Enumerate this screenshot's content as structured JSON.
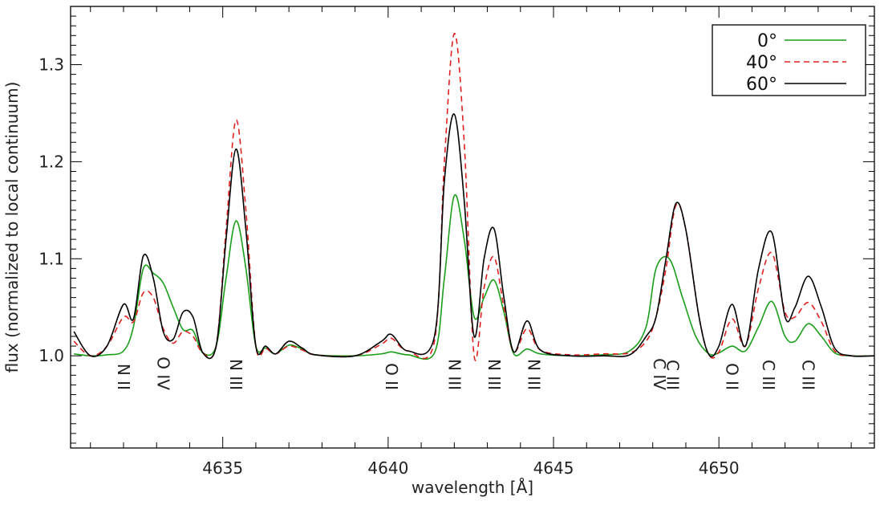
{
  "chart_data": {
    "type": "line",
    "xlabel": "wavelength [Å]",
    "ylabel": "flux (normalized to local continuum)",
    "xlim": [
      4630.4,
      4654.7
    ],
    "ylim": [
      0.905,
      1.36
    ],
    "xticks": [
      4635,
      4640,
      4645,
      4650
    ],
    "xtick_labels": [
      "4635",
      "4640",
      "4645",
      "4650"
    ],
    "yticks": [
      1.0,
      1.1,
      1.2,
      1.3
    ],
    "ytick_labels": [
      "1.0",
      "1.1",
      "1.2",
      "1.3"
    ],
    "grid": false,
    "legend_position": "top-right",
    "series": [
      {
        "name": "0°",
        "color": "#1a9e1a",
        "dash": "solid",
        "points": [
          [
            4630.5,
            1.002
          ],
          [
            4631.0,
            1.0
          ],
          [
            4631.5,
            1.001
          ],
          [
            4632.0,
            1.005
          ],
          [
            4632.3,
            1.03
          ],
          [
            4632.6,
            1.09
          ],
          [
            4632.9,
            1.085
          ],
          [
            4633.2,
            1.075
          ],
          [
            4633.5,
            1.05
          ],
          [
            4633.8,
            1.027
          ],
          [
            4634.1,
            1.026
          ],
          [
            4634.4,
            1.003
          ],
          [
            4634.8,
            1.01
          ],
          [
            4635.1,
            1.08
          ],
          [
            4635.4,
            1.139
          ],
          [
            4635.7,
            1.09
          ],
          [
            4636.0,
            1.01
          ],
          [
            4636.3,
            1.008
          ],
          [
            4636.6,
            1.002
          ],
          [
            4637.0,
            1.011
          ],
          [
            4637.4,
            1.007
          ],
          [
            4637.8,
            1.001
          ],
          [
            4639.0,
            1.0
          ],
          [
            4639.8,
            1.002
          ],
          [
            4640.1,
            1.004
          ],
          [
            4640.6,
            1.001
          ],
          [
            4641.4,
            1.003
          ],
          [
            4641.7,
            1.08
          ],
          [
            4642.0,
            1.165
          ],
          [
            4642.3,
            1.12
          ],
          [
            4642.6,
            1.04
          ],
          [
            4642.9,
            1.06
          ],
          [
            4643.2,
            1.078
          ],
          [
            4643.5,
            1.045
          ],
          [
            4643.8,
            1.002
          ],
          [
            4644.2,
            1.007
          ],
          [
            4644.6,
            1.002
          ],
          [
            4645.5,
            1.0
          ],
          [
            4646.5,
            1.001
          ],
          [
            4647.3,
            1.005
          ],
          [
            4647.8,
            1.03
          ],
          [
            4648.1,
            1.09
          ],
          [
            4648.5,
            1.1
          ],
          [
            4648.9,
            1.06
          ],
          [
            4649.3,
            1.02
          ],
          [
            4649.7,
            1.002
          ],
          [
            4650.0,
            1.003
          ],
          [
            4650.4,
            1.01
          ],
          [
            4650.8,
            1.005
          ],
          [
            4651.2,
            1.03
          ],
          [
            4651.6,
            1.056
          ],
          [
            4652.0,
            1.02
          ],
          [
            4652.3,
            1.015
          ],
          [
            4652.7,
            1.033
          ],
          [
            4653.1,
            1.02
          ],
          [
            4653.5,
            1.003
          ],
          [
            4654.0,
            1.0
          ],
          [
            4654.7,
            1.0
          ]
        ]
      },
      {
        "name": "40°",
        "color": "#e02020",
        "dash": "dashed",
        "points": [
          [
            4630.5,
            1.015
          ],
          [
            4631.0,
            1.0
          ],
          [
            4631.5,
            1.01
          ],
          [
            4632.0,
            1.04
          ],
          [
            4632.3,
            1.035
          ],
          [
            4632.6,
            1.065
          ],
          [
            4632.9,
            1.06
          ],
          [
            4633.2,
            1.028
          ],
          [
            4633.5,
            1.013
          ],
          [
            4633.8,
            1.025
          ],
          [
            4634.1,
            1.02
          ],
          [
            4634.4,
            1.003
          ],
          [
            4634.8,
            1.01
          ],
          [
            4635.1,
            1.13
          ],
          [
            4635.4,
            1.243
          ],
          [
            4635.7,
            1.15
          ],
          [
            4636.0,
            1.01
          ],
          [
            4636.3,
            1.008
          ],
          [
            4636.6,
            1.002
          ],
          [
            4637.0,
            1.01
          ],
          [
            4637.4,
            1.006
          ],
          [
            4637.8,
            1.001
          ],
          [
            4639.0,
            1.0
          ],
          [
            4639.8,
            1.012
          ],
          [
            4640.1,
            1.018
          ],
          [
            4640.6,
            1.005
          ],
          [
            4641.4,
            1.015
          ],
          [
            4641.7,
            1.2
          ],
          [
            4642.0,
            1.332
          ],
          [
            4642.3,
            1.22
          ],
          [
            4642.6,
            1.0
          ],
          [
            4642.9,
            1.07
          ],
          [
            4643.2,
            1.102
          ],
          [
            4643.5,
            1.05
          ],
          [
            4643.8,
            1.004
          ],
          [
            4644.2,
            1.028
          ],
          [
            4644.6,
            1.006
          ],
          [
            4645.5,
            1.001
          ],
          [
            4646.5,
            1.002
          ],
          [
            4647.3,
            1.003
          ],
          [
            4647.8,
            1.015
          ],
          [
            4648.1,
            1.04
          ],
          [
            4648.4,
            1.09
          ],
          [
            4648.7,
            1.155
          ],
          [
            4649.0,
            1.13
          ],
          [
            4649.4,
            1.04
          ],
          [
            4649.7,
            1.001
          ],
          [
            4650.0,
            1.004
          ],
          [
            4650.4,
            1.038
          ],
          [
            4650.8,
            1.01
          ],
          [
            4651.2,
            1.07
          ],
          [
            4651.6,
            1.106
          ],
          [
            4652.0,
            1.045
          ],
          [
            4652.3,
            1.04
          ],
          [
            4652.7,
            1.055
          ],
          [
            4653.1,
            1.035
          ],
          [
            4653.5,
            1.005
          ],
          [
            4654.0,
            1.0
          ],
          [
            4654.7,
            1.0
          ]
        ]
      },
      {
        "name": "60°",
        "color": "#000000",
        "dash": "solid",
        "points": [
          [
            4630.5,
            1.025
          ],
          [
            4631.0,
            1.0
          ],
          [
            4631.5,
            1.01
          ],
          [
            4632.0,
            1.053
          ],
          [
            4632.3,
            1.038
          ],
          [
            4632.6,
            1.103
          ],
          [
            4632.9,
            1.08
          ],
          [
            4633.2,
            1.025
          ],
          [
            4633.5,
            1.017
          ],
          [
            4633.8,
            1.045
          ],
          [
            4634.1,
            1.04
          ],
          [
            4634.4,
            1.003
          ],
          [
            4634.8,
            1.01
          ],
          [
            4635.1,
            1.12
          ],
          [
            4635.4,
            1.213
          ],
          [
            4635.7,
            1.13
          ],
          [
            4636.0,
            1.01
          ],
          [
            4636.3,
            1.01
          ],
          [
            4636.6,
            1.002
          ],
          [
            4637.0,
            1.015
          ],
          [
            4637.4,
            1.008
          ],
          [
            4637.8,
            1.001
          ],
          [
            4639.0,
            1.0
          ],
          [
            4639.8,
            1.015
          ],
          [
            4640.1,
            1.022
          ],
          [
            4640.6,
            1.005
          ],
          [
            4641.4,
            1.02
          ],
          [
            4641.7,
            1.18
          ],
          [
            4642.0,
            1.249
          ],
          [
            4642.3,
            1.16
          ],
          [
            4642.6,
            1.02
          ],
          [
            4642.9,
            1.1
          ],
          [
            4643.2,
            1.131
          ],
          [
            4643.5,
            1.06
          ],
          [
            4643.8,
            1.004
          ],
          [
            4644.2,
            1.036
          ],
          [
            4644.6,
            1.006
          ],
          [
            4645.5,
            1.0
          ],
          [
            4646.5,
            1.0
          ],
          [
            4647.3,
            1.001
          ],
          [
            4647.8,
            1.02
          ],
          [
            4648.1,
            1.04
          ],
          [
            4648.4,
            1.1
          ],
          [
            4648.7,
            1.157
          ],
          [
            4649.0,
            1.13
          ],
          [
            4649.4,
            1.04
          ],
          [
            4649.7,
            1.001
          ],
          [
            4650.0,
            1.01
          ],
          [
            4650.4,
            1.053
          ],
          [
            4650.8,
            1.01
          ],
          [
            4651.2,
            1.09
          ],
          [
            4651.6,
            1.127
          ],
          [
            4652.0,
            1.04
          ],
          [
            4652.3,
            1.05
          ],
          [
            4652.7,
            1.082
          ],
          [
            4653.1,
            1.05
          ],
          [
            4653.5,
            1.008
          ],
          [
            4654.0,
            1.0
          ],
          [
            4654.7,
            1.0
          ]
        ]
      }
    ],
    "line_labels": [
      {
        "x": 4632.0,
        "element": "N",
        "ion": "II"
      },
      {
        "x": 4633.2,
        "element": "O",
        "ion": "IV"
      },
      {
        "x": 4635.4,
        "element": "N",
        "ion": "III"
      },
      {
        "x": 4640.1,
        "element": "O",
        "ion": "II"
      },
      {
        "x": 4642.0,
        "element": "N",
        "ion": "III"
      },
      {
        "x": 4643.2,
        "element": "N",
        "ion": "III"
      },
      {
        "x": 4644.4,
        "element": "N",
        "ion": "III"
      },
      {
        "x": 4648.2,
        "element": "C",
        "ion": "IV"
      },
      {
        "x": 4648.6,
        "element": "C",
        "ion": "III"
      },
      {
        "x": 4650.4,
        "element": "O",
        "ion": "II"
      },
      {
        "x": 4651.5,
        "element": "C",
        "ion": "III"
      },
      {
        "x": 4652.7,
        "element": "C",
        "ion": "III"
      }
    ]
  }
}
